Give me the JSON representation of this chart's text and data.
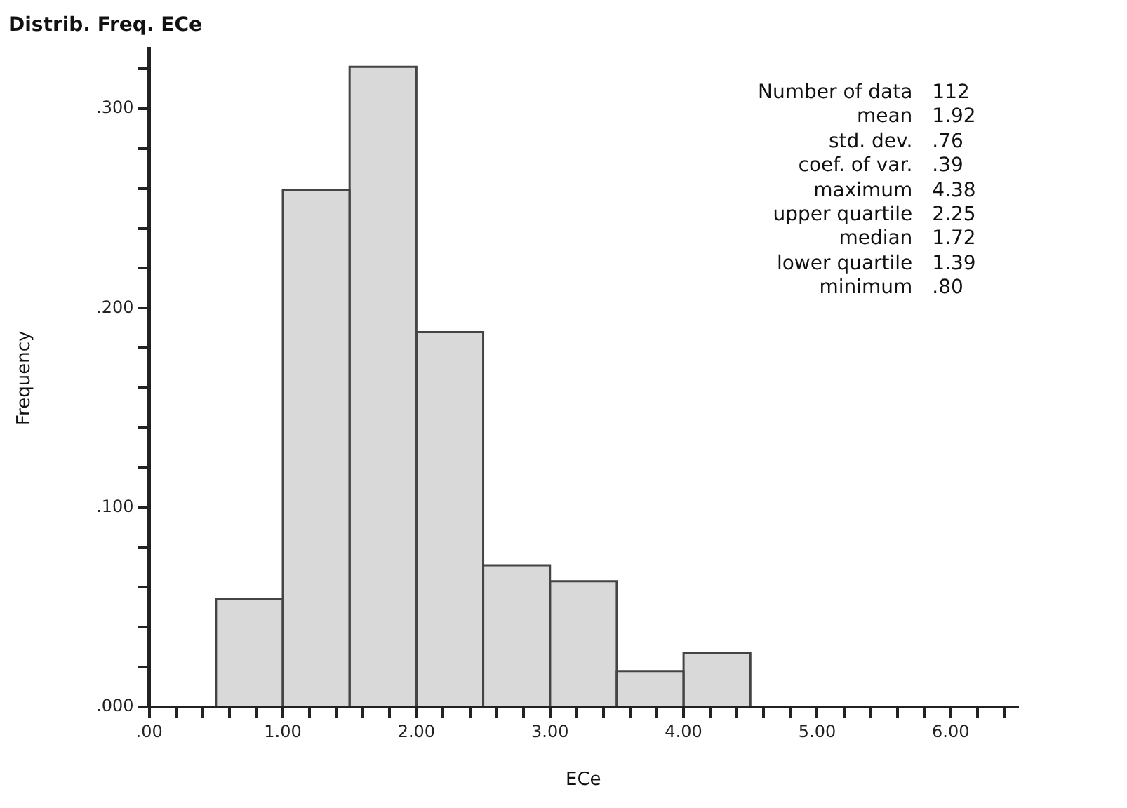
{
  "chart_data": {
    "type": "histogram",
    "title": "Distrib. Freq. ECe",
    "xlabel": "ECe",
    "ylabel": "Frequency",
    "bins": [
      0.5,
      1.0,
      1.5,
      2.0,
      2.5,
      3.0,
      3.5,
      4.0,
      4.5
    ],
    "values": [
      0.054,
      0.259,
      0.321,
      0.188,
      0.071,
      0.063,
      0.018,
      0.027
    ],
    "color": "#d9d9d9",
    "xlim": [
      0,
      6.5
    ],
    "xticks": [
      {
        "value": 0,
        "label": ".00"
      },
      {
        "value": 0.2,
        "label": null
      },
      {
        "value": 0.4,
        "label": null
      },
      {
        "value": 0.6,
        "label": null
      },
      {
        "value": 0.8,
        "label": null
      },
      {
        "value": 1,
        "label": "1.00"
      },
      {
        "value": 1.2,
        "label": null
      },
      {
        "value": 1.4,
        "label": null
      },
      {
        "value": 1.6,
        "label": null
      },
      {
        "value": 1.8,
        "label": null
      },
      {
        "value": 2,
        "label": "2.00"
      },
      {
        "value": 2.2,
        "label": null
      },
      {
        "value": 2.4,
        "label": null
      },
      {
        "value": 2.6,
        "label": null
      },
      {
        "value": 2.8,
        "label": null
      },
      {
        "value": 3,
        "label": "3.00"
      },
      {
        "value": 3.2,
        "label": null
      },
      {
        "value": 3.4,
        "label": null
      },
      {
        "value": 3.6,
        "label": null
      },
      {
        "value": 3.8,
        "label": null
      },
      {
        "value": 4,
        "label": "4.00"
      },
      {
        "value": 4.2,
        "label": null
      },
      {
        "value": 4.4,
        "label": null
      },
      {
        "value": 4.6,
        "label": null
      },
      {
        "value": 4.8,
        "label": null
      },
      {
        "value": 5,
        "label": "5.00"
      },
      {
        "value": 5.2,
        "label": null
      },
      {
        "value": 5.4,
        "label": null
      },
      {
        "value": 5.6,
        "label": null
      },
      {
        "value": 5.8,
        "label": null
      },
      {
        "value": 6,
        "label": "6.00"
      },
      {
        "value": 6.2,
        "label": null
      },
      {
        "value": 6.4,
        "label": null
      }
    ],
    "ylim": [
      0,
      0.33
    ],
    "yticks": [
      {
        "value": 0,
        "label": ".000"
      },
      {
        "value": 0.02,
        "label": null
      },
      {
        "value": 0.04,
        "label": null
      },
      {
        "value": 0.06,
        "label": null
      },
      {
        "value": 0.08,
        "label": null
      },
      {
        "value": 0.1,
        "label": ".100"
      },
      {
        "value": 0.12,
        "label": null
      },
      {
        "value": 0.14,
        "label": null
      },
      {
        "value": 0.16,
        "label": null
      },
      {
        "value": 0.18,
        "label": null
      },
      {
        "value": 0.2,
        "label": ".200"
      },
      {
        "value": 0.22,
        "label": null
      },
      {
        "value": 0.24,
        "label": null
      },
      {
        "value": 0.26,
        "label": null
      },
      {
        "value": 0.28,
        "label": null
      },
      {
        "value": 0.3,
        "label": ".300"
      },
      {
        "value": 0.32,
        "label": null
      }
    ],
    "grid": false,
    "legend": false,
    "annotations": [
      "Number of data 112",
      "mean 1.92",
      "std. dev. .76",
      "coef. of var. .39",
      "maximum 4.38",
      "upper quartile 2.25",
      "median 1.72",
      "lower quartile 1.39",
      "minimum .80"
    ]
  }
}
